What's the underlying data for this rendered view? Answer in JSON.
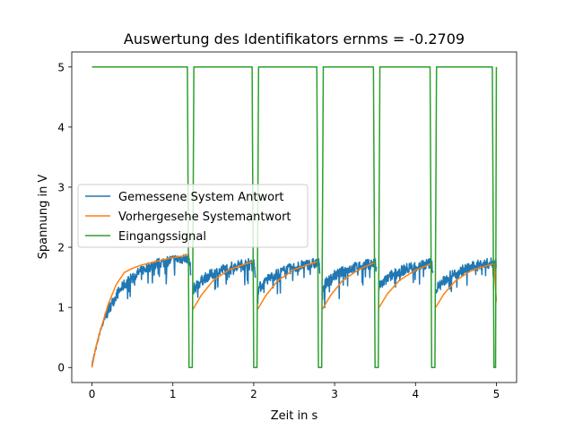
{
  "chart_data": {
    "type": "line",
    "title": "Auswertung des Identifikators ernms = -0.2709",
    "xlabel": "Zeit in s",
    "ylabel": "Spannung in V",
    "xlim": [
      -0.25,
      5.25
    ],
    "ylim": [
      -0.25,
      5.25
    ],
    "xticks": [
      0,
      1,
      2,
      3,
      4,
      5
    ],
    "yticks": [
      0,
      1,
      2,
      3,
      4,
      5
    ],
    "grid": false,
    "legend_position": "center-left",
    "segments": [
      {
        "start": 0.0,
        "end": 1.22
      },
      {
        "start": 1.25,
        "end": 2.02
      },
      {
        "start": 2.05,
        "end": 2.82
      },
      {
        "start": 2.85,
        "end": 3.52
      },
      {
        "start": 3.55,
        "end": 4.22
      },
      {
        "start": 4.25,
        "end": 5.0
      }
    ],
    "series": [
      {
        "name": "Gemessene System Antwort",
        "color": "#1f77b4",
        "style": "noisy",
        "points": [
          [
            0.0,
            0.05
          ],
          [
            0.1,
            0.6
          ],
          [
            0.2,
            0.95
          ],
          [
            0.3,
            1.2
          ],
          [
            0.4,
            1.38
          ],
          [
            0.5,
            1.5
          ],
          [
            0.6,
            1.6
          ],
          [
            0.7,
            1.67
          ],
          [
            0.8,
            1.72
          ],
          [
            0.9,
            1.76
          ],
          [
            1.0,
            1.79
          ],
          [
            1.1,
            1.81
          ],
          [
            1.2,
            1.82
          ],
          [
            1.25,
            1.3
          ],
          [
            1.4,
            1.5
          ],
          [
            1.6,
            1.62
          ],
          [
            1.8,
            1.7
          ],
          [
            2.0,
            1.74
          ],
          [
            2.05,
            1.3
          ],
          [
            2.2,
            1.5
          ],
          [
            2.4,
            1.62
          ],
          [
            2.6,
            1.7
          ],
          [
            2.8,
            1.74
          ],
          [
            2.85,
            1.35
          ],
          [
            3.0,
            1.53
          ],
          [
            3.2,
            1.65
          ],
          [
            3.5,
            1.74
          ],
          [
            3.55,
            1.35
          ],
          [
            3.7,
            1.53
          ],
          [
            3.9,
            1.65
          ],
          [
            4.2,
            1.74
          ],
          [
            4.25,
            1.3
          ],
          [
            4.4,
            1.5
          ],
          [
            4.6,
            1.63
          ],
          [
            4.8,
            1.71
          ],
          [
            5.0,
            1.75
          ]
        ]
      },
      {
        "name": "Vorhergesehe Systemantwort",
        "color": "#ff7f0e",
        "style": "smooth",
        "points": [
          [
            0.0,
            0.0
          ],
          [
            0.05,
            0.35
          ],
          [
            0.1,
            0.6
          ],
          [
            0.2,
            1.05
          ],
          [
            0.3,
            1.38
          ],
          [
            0.4,
            1.58
          ],
          [
            0.5,
            1.65
          ],
          [
            0.6,
            1.7
          ],
          [
            0.8,
            1.77
          ],
          [
            1.0,
            1.83
          ],
          [
            1.2,
            1.87
          ],
          [
            1.25,
            0.97
          ],
          [
            1.35,
            1.2
          ],
          [
            1.5,
            1.45
          ],
          [
            1.7,
            1.63
          ],
          [
            2.0,
            1.77
          ],
          [
            2.05,
            0.97
          ],
          [
            2.15,
            1.2
          ],
          [
            2.3,
            1.45
          ],
          [
            2.5,
            1.63
          ],
          [
            2.8,
            1.77
          ],
          [
            2.85,
            0.97
          ],
          [
            2.95,
            1.2
          ],
          [
            3.1,
            1.45
          ],
          [
            3.3,
            1.63
          ],
          [
            3.5,
            1.75
          ],
          [
            3.55,
            1.0
          ],
          [
            3.65,
            1.22
          ],
          [
            3.8,
            1.45
          ],
          [
            4.0,
            1.62
          ],
          [
            4.2,
            1.73
          ],
          [
            4.25,
            1.0
          ],
          [
            4.35,
            1.22
          ],
          [
            4.5,
            1.45
          ],
          [
            4.7,
            1.62
          ],
          [
            4.97,
            1.73
          ],
          [
            5.0,
            1.1
          ]
        ]
      },
      {
        "name": "Eingangssignal",
        "color": "#2ca02c",
        "style": "step",
        "points": [
          [
            0.0,
            5.0
          ],
          [
            1.18,
            5.0
          ],
          [
            1.2,
            0.0
          ],
          [
            1.24,
            0.0
          ],
          [
            1.26,
            5.0
          ],
          [
            1.98,
            5.0
          ],
          [
            2.0,
            0.0
          ],
          [
            2.04,
            0.0
          ],
          [
            2.06,
            5.0
          ],
          [
            2.78,
            5.0
          ],
          [
            2.8,
            0.0
          ],
          [
            2.84,
            0.0
          ],
          [
            2.86,
            5.0
          ],
          [
            3.48,
            5.0
          ],
          [
            3.5,
            0.0
          ],
          [
            3.54,
            0.0
          ],
          [
            3.56,
            5.0
          ],
          [
            4.18,
            5.0
          ],
          [
            4.2,
            0.0
          ],
          [
            4.24,
            0.0
          ],
          [
            4.26,
            5.0
          ],
          [
            4.95,
            5.0
          ],
          [
            4.97,
            0.0
          ],
          [
            4.99,
            0.0
          ],
          [
            5.0,
            5.0
          ]
        ]
      }
    ]
  }
}
